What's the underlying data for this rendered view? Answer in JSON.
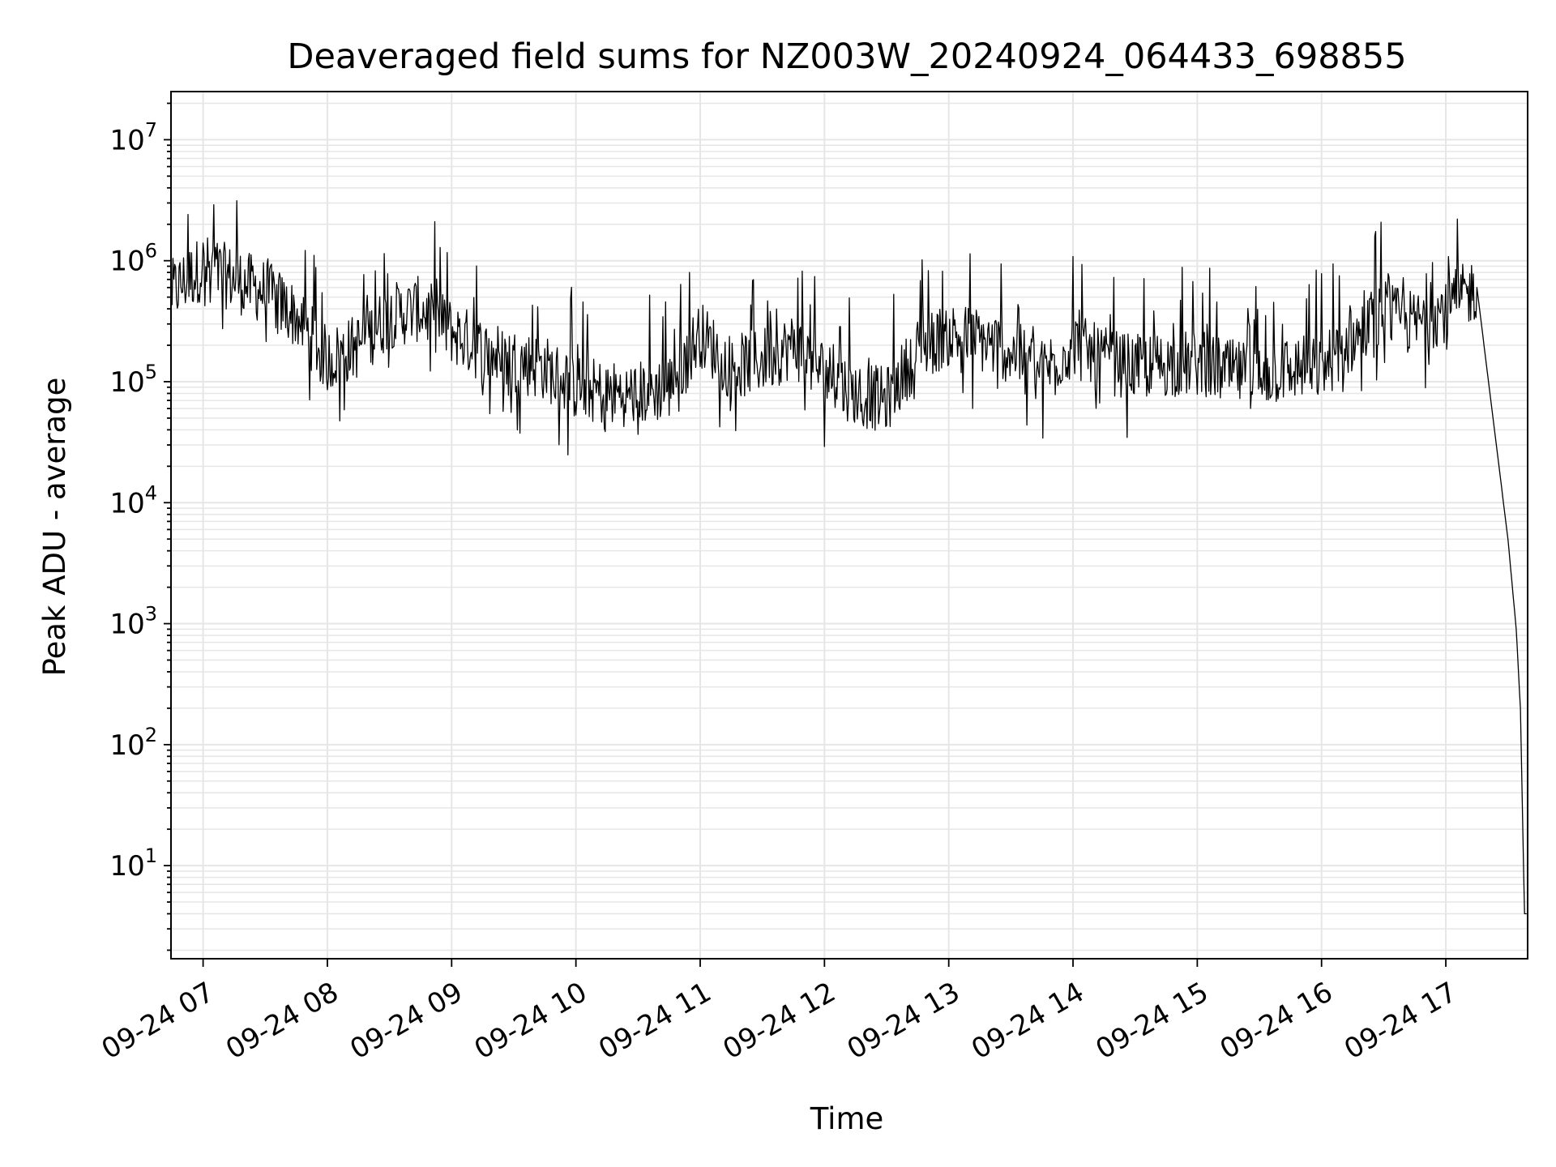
{
  "chart_data": {
    "type": "line",
    "title": "Deaveraged field sums for NZ003W_20240924_064433_698855",
    "xlabel": "Time",
    "ylabel": "Peak ADU - average",
    "yscale": "log",
    "ylim": [
      1.7,
      25000000
    ],
    "xlim": [
      "09-24 06:44:30",
      "09-24 17:39:30"
    ],
    "grid": "major and minor",
    "x_ticks": [
      "09-24 07",
      "09-24 08",
      "09-24 09",
      "09-24 10",
      "09-24 11",
      "09-24 12",
      "09-24 13",
      "09-24 14",
      "09-24 15",
      "09-24 16",
      "09-24 17"
    ],
    "y_ticks": [
      {
        "base": "10",
        "exp": "1"
      },
      {
        "base": "10",
        "exp": "2"
      },
      {
        "base": "10",
        "exp": "3"
      },
      {
        "base": "10",
        "exp": "4"
      },
      {
        "base": "10",
        "exp": "5"
      },
      {
        "base": "10",
        "exp": "6"
      },
      {
        "base": "10",
        "exp": "7"
      }
    ],
    "series": [
      {
        "color": "#000000",
        "x": [
          "09-24 06:45",
          "09-24 07:00",
          "09-24 07:15",
          "09-24 07:30",
          "09-24 07:45",
          "09-24 08:00",
          "09-24 08:15",
          "09-24 08:30",
          "09-24 08:45",
          "09-24 09:00",
          "09-24 09:15",
          "09-24 09:30",
          "09-24 09:45",
          "09-24 10:00",
          "09-24 10:15",
          "09-24 10:30",
          "09-24 10:45",
          "09-24 11:00",
          "09-24 11:15",
          "09-24 11:30",
          "09-24 11:45",
          "09-24 12:00",
          "09-24 12:15",
          "09-24 12:30",
          "09-24 12:45",
          "09-24 13:00",
          "09-24 13:15",
          "09-24 13:30",
          "09-24 13:45",
          "09-24 14:00",
          "09-24 14:15",
          "09-24 14:30",
          "09-24 14:45",
          "09-24 15:00",
          "09-24 15:15",
          "09-24 15:30",
          "09-24 15:45",
          "09-24 16:00",
          "09-24 16:15",
          "09-24 16:30",
          "09-24 16:45",
          "09-24 17:00",
          "09-24 17:15",
          "09-24 17:30",
          "09-24 17:34",
          "09-24 17:36",
          "09-24 17:38",
          "09-24 17:39"
        ],
        "y": [
          550000,
          900000,
          700000,
          550000,
          350000,
          150000,
          200000,
          350000,
          400000,
          260000,
          180000,
          150000,
          130000,
          90000,
          80000,
          80000,
          90000,
          250000,
          130000,
          150000,
          200000,
          120000,
          80000,
          70000,
          180000,
          250000,
          220000,
          180000,
          120000,
          200000,
          150000,
          130000,
          140000,
          140000,
          120000,
          110000,
          130000,
          130000,
          220000,
          350000,
          300000,
          400000,
          600000,
          5000,
          900,
          200,
          4,
          4
        ]
      }
    ]
  }
}
